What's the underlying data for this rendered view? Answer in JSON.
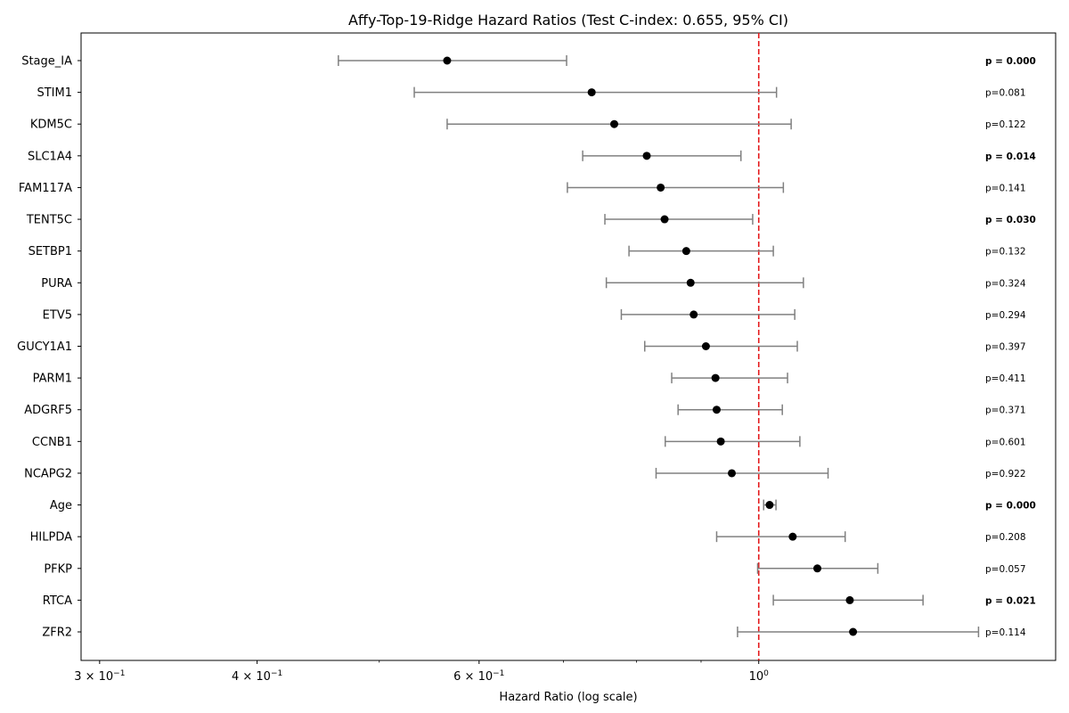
{
  "chart_data": {
    "type": "forest",
    "title": "Affy-Top-19-Ridge Hazard Ratios (Test C-index: 0.655, 95% CI)",
    "xlabel": "Hazard Ratio (log scale)",
    "ylabel": "",
    "x_scale": "log",
    "xlim": [
      0.29,
      1.72
    ],
    "x_ticks": [
      {
        "value": 0.3,
        "label_base": "3 × 10",
        "label_exp": "−1"
      },
      {
        "value": 0.4,
        "label_base": "4 × 10",
        "label_exp": "−1"
      },
      {
        "value": 0.6,
        "label_base": "6 × 10",
        "label_exp": "−1"
      },
      {
        "value": 1.0,
        "label_base": "10",
        "label_exp": "0"
      }
    ],
    "reference_line": {
      "value": 1.0,
      "color": "#e41a1c",
      "style": "dashed"
    },
    "colors": {
      "point": "#000000",
      "ci": "#808080",
      "reference": "#e41a1c"
    },
    "rows": [
      {
        "label": "Stage_IA",
        "hr": 0.566,
        "lower": 0.464,
        "upper": 0.704,
        "p_label": "p = 0.000",
        "significant": true
      },
      {
        "label": "STIM1",
        "hr": 0.737,
        "lower": 0.533,
        "upper": 1.033,
        "p_label": "p=0.081",
        "significant": false
      },
      {
        "label": "KDM5C",
        "hr": 0.768,
        "lower": 0.566,
        "upper": 1.061,
        "p_label": "p=0.122",
        "significant": false
      },
      {
        "label": "SLC1A4",
        "hr": 0.815,
        "lower": 0.725,
        "upper": 0.968,
        "p_label": "p = 0.014",
        "significant": true
      },
      {
        "label": "FAM117A",
        "hr": 0.836,
        "lower": 0.705,
        "upper": 1.046,
        "p_label": "p=0.141",
        "significant": false
      },
      {
        "label": "TENT5C",
        "hr": 0.842,
        "lower": 0.755,
        "upper": 0.989,
        "p_label": "p = 0.030",
        "significant": true
      },
      {
        "label": "SETBP1",
        "hr": 0.876,
        "lower": 0.789,
        "upper": 1.027,
        "p_label": "p=0.132",
        "significant": false
      },
      {
        "label": "PURA",
        "hr": 0.883,
        "lower": 0.757,
        "upper": 1.085,
        "p_label": "p=0.324",
        "significant": false
      },
      {
        "label": "ETV5",
        "hr": 0.888,
        "lower": 0.778,
        "upper": 1.068,
        "p_label": "p=0.294",
        "significant": false
      },
      {
        "label": "GUCY1A1",
        "hr": 0.908,
        "lower": 0.812,
        "upper": 1.073,
        "p_label": "p=0.397",
        "significant": false
      },
      {
        "label": "PARM1",
        "hr": 0.924,
        "lower": 0.853,
        "upper": 1.054,
        "p_label": "p=0.411",
        "significant": false
      },
      {
        "label": "ADGRF5",
        "hr": 0.926,
        "lower": 0.863,
        "upper": 1.044,
        "p_label": "p=0.371",
        "significant": false
      },
      {
        "label": "CCNB1",
        "hr": 0.933,
        "lower": 0.843,
        "upper": 1.078,
        "p_label": "p=0.601",
        "significant": false
      },
      {
        "label": "NCAPG2",
        "hr": 0.952,
        "lower": 0.829,
        "upper": 1.135,
        "p_label": "p=0.922",
        "significant": false
      },
      {
        "label": "Age",
        "hr": 1.02,
        "lower": 1.009,
        "upper": 1.032,
        "p_label": "p = 0.000",
        "significant": true
      },
      {
        "label": "HILPDA",
        "hr": 1.064,
        "lower": 0.926,
        "upper": 1.171,
        "p_label": "p=0.208",
        "significant": false
      },
      {
        "label": "PFKP",
        "hr": 1.113,
        "lower": 0.998,
        "upper": 1.243,
        "p_label": "p=0.057",
        "significant": false
      },
      {
        "label": "RTCA",
        "hr": 1.181,
        "lower": 1.027,
        "upper": 1.35,
        "p_label": "p = 0.021",
        "significant": true
      },
      {
        "label": "ZFR2",
        "hr": 1.188,
        "lower": 0.962,
        "upper": 1.494,
        "p_label": "p=0.114",
        "significant": false
      }
    ]
  }
}
